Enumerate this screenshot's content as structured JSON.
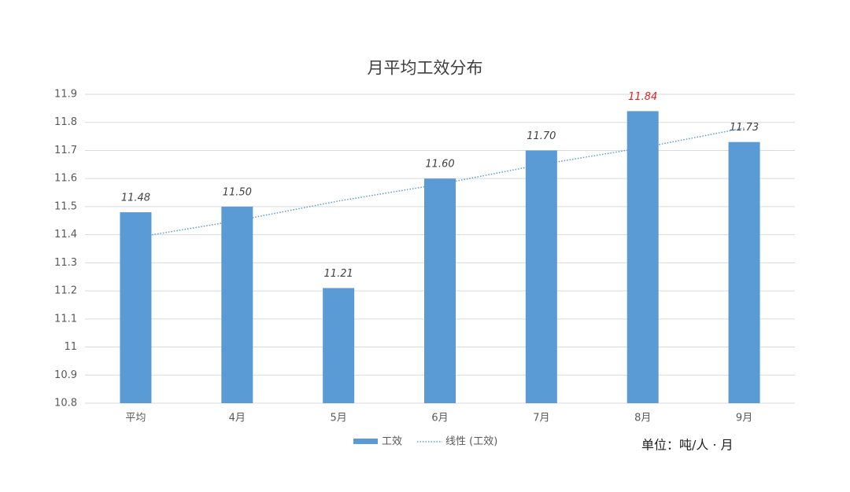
{
  "chart_data": {
    "type": "bar",
    "title": "月平均工效分布",
    "categories": [
      "平均",
      "4月",
      "5月",
      "6月",
      "7月",
      "8月",
      "9月"
    ],
    "series": [
      {
        "name": "工效",
        "color": "#5b9bd5",
        "values": [
          11.48,
          11.5,
          11.21,
          11.6,
          11.7,
          11.84,
          11.73
        ],
        "value_labels": [
          "11.48",
          "11.50",
          "11.21",
          "11.60",
          "11.70",
          "11.84",
          "11.73"
        ],
        "value_label_colors": [
          "#404040",
          "#404040",
          "#404040",
          "#404040",
          "#404040",
          "#e02020",
          "#404040"
        ]
      },
      {
        "name": "线性 (工效)",
        "type": "trendline",
        "color": "#5b9bd5",
        "values": [
          11.39,
          11.45,
          11.52,
          11.58,
          11.65,
          11.71,
          11.78
        ]
      }
    ],
    "ylim": [
      10.8,
      11.9
    ],
    "yticks": [
      10.8,
      10.9,
      11,
      11.1,
      11.2,
      11.3,
      11.4,
      11.5,
      11.6,
      11.7,
      11.8,
      11.9
    ],
    "grid": true,
    "legend": "bottom",
    "annotation": "单位：吨/人 · 月"
  }
}
